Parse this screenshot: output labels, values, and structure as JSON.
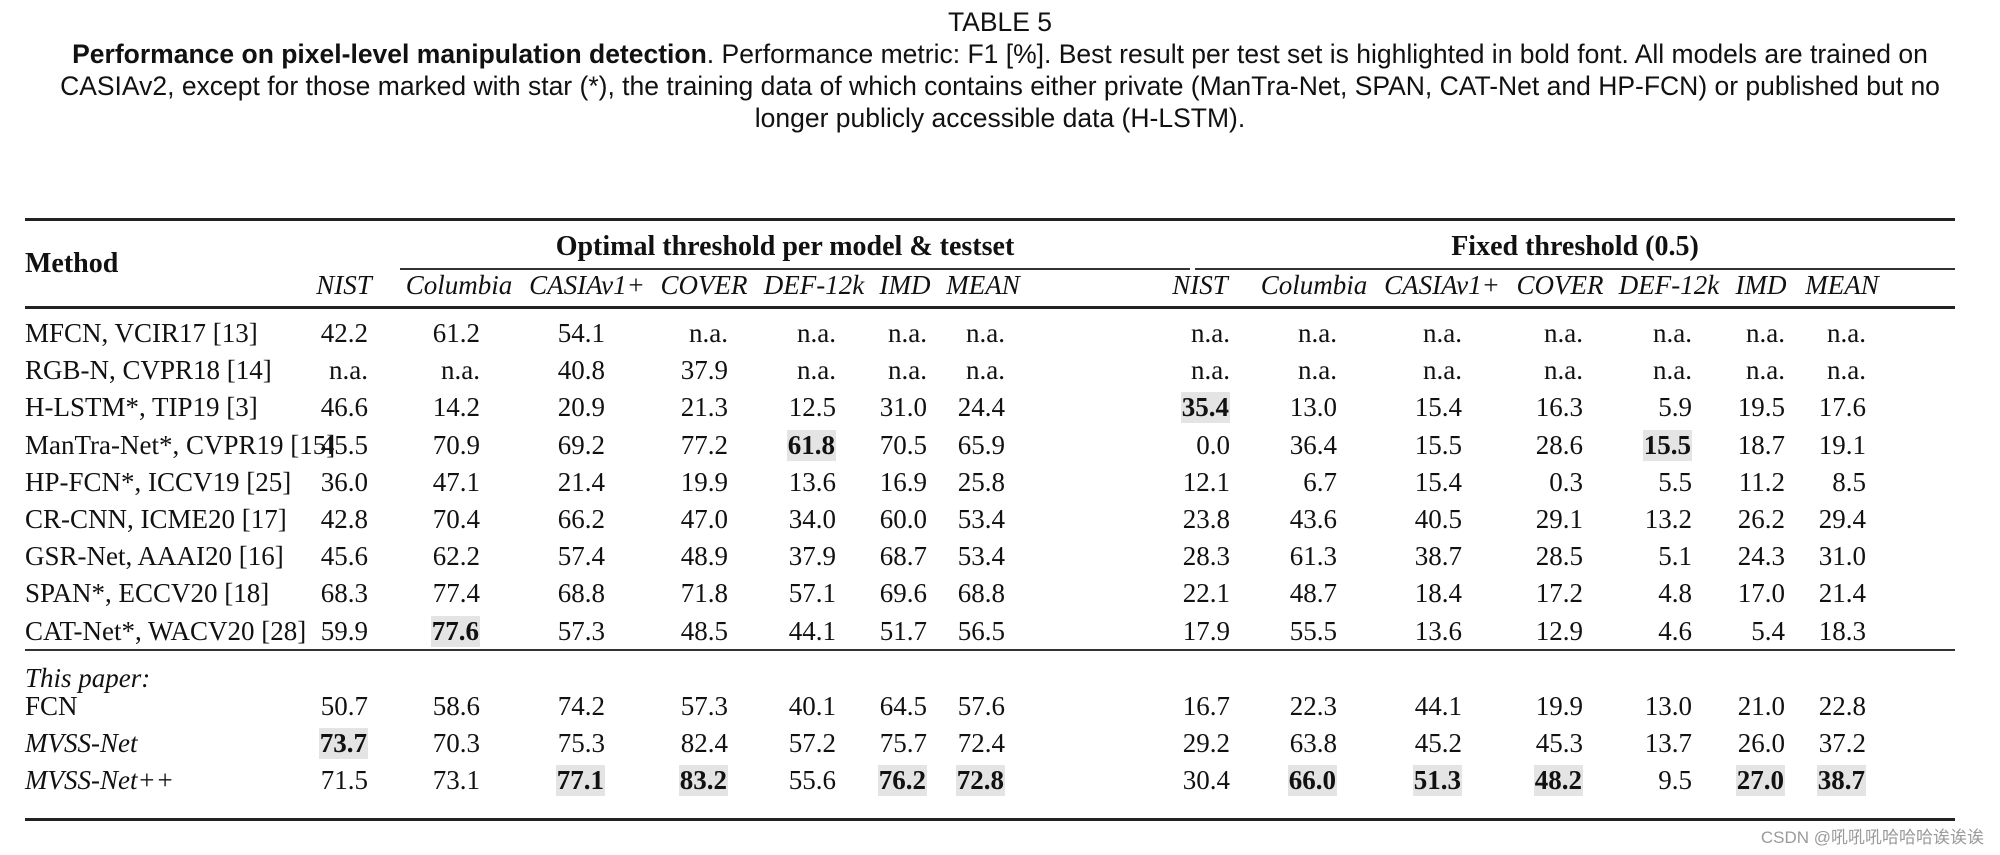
{
  "caption": {
    "label": "TABLE 5",
    "title_bold": "Performance on pixel-level manipulation detection",
    "text": ". Performance metric: F1 [%]. Best result per test set is highlighted in bold font. All models are trained on CASIAv2, except for those marked with star (*), the training data of which contains either private (ManTra-Net, SPAN, CAT-Net and HP-FCN) or published but no longer publicly accessible data (H-LSTM)."
  },
  "table": {
    "method_header": "Method",
    "groups": [
      {
        "label": "Optimal threshold per model & testset"
      },
      {
        "label": "Fixed threshold (0.5)"
      }
    ],
    "columns": [
      "NIST",
      "Columbia",
      "CASIAv1+",
      "COVER",
      "DEF-12k",
      "IMD",
      "MEAN"
    ],
    "section_label": "This paper:",
    "rows": [
      {
        "method": "MFCN, VCIR17 [13]",
        "italic": false,
        "optimal": [
          "42.2",
          "61.2",
          "54.1",
          "n.a.",
          "n.a.",
          "n.a.",
          "n.a."
        ],
        "fixed": [
          "n.a.",
          "n.a.",
          "n.a.",
          "n.a.",
          "n.a.",
          "n.a.",
          "n.a."
        ]
      },
      {
        "method": "RGB-N, CVPR18 [14]",
        "italic": false,
        "optimal": [
          "n.a.",
          "n.a.",
          "40.8",
          "37.9",
          "n.a.",
          "n.a.",
          "n.a."
        ],
        "fixed": [
          "n.a.",
          "n.a.",
          "n.a.",
          "n.a.",
          "n.a.",
          "n.a.",
          "n.a."
        ]
      },
      {
        "method": "H-LSTM*, TIP19 [3]",
        "italic": false,
        "optimal": [
          "46.6",
          "14.2",
          "20.9",
          "21.3",
          "12.5",
          "31.0",
          "24.4"
        ],
        "fixed": [
          "35.4",
          "13.0",
          "15.4",
          "16.3",
          "5.9",
          "19.5",
          "17.6"
        ]
      },
      {
        "method": "ManTra-Net*, CVPR19 [15]",
        "italic": false,
        "optimal": [
          "45.5",
          "70.9",
          "69.2",
          "77.2",
          "61.8",
          "70.5",
          "65.9"
        ],
        "fixed": [
          "0.0",
          "36.4",
          "15.5",
          "28.6",
          "15.5",
          "18.7",
          "19.1"
        ]
      },
      {
        "method": "HP-FCN*, ICCV19 [25]",
        "italic": false,
        "optimal": [
          "36.0",
          "47.1",
          "21.4",
          "19.9",
          "13.6",
          "16.9",
          "25.8"
        ],
        "fixed": [
          "12.1",
          "6.7",
          "15.4",
          "0.3",
          "5.5",
          "11.2",
          "8.5"
        ]
      },
      {
        "method": "CR-CNN, ICME20 [17]",
        "italic": false,
        "optimal": [
          "42.8",
          "70.4",
          "66.2",
          "47.0",
          "34.0",
          "60.0",
          "53.4"
        ],
        "fixed": [
          "23.8",
          "43.6",
          "40.5",
          "29.1",
          "13.2",
          "26.2",
          "29.4"
        ]
      },
      {
        "method": "GSR-Net, AAAI20 [16]",
        "italic": false,
        "optimal": [
          "45.6",
          "62.2",
          "57.4",
          "48.9",
          "37.9",
          "68.7",
          "53.4"
        ],
        "fixed": [
          "28.3",
          "61.3",
          "38.7",
          "28.5",
          "5.1",
          "24.3",
          "31.0"
        ]
      },
      {
        "method": "SPAN*, ECCV20 [18]",
        "italic": false,
        "optimal": [
          "68.3",
          "77.4",
          "68.8",
          "71.8",
          "57.1",
          "69.6",
          "68.8"
        ],
        "fixed": [
          "22.1",
          "48.7",
          "18.4",
          "17.2",
          "4.8",
          "17.0",
          "21.4"
        ]
      },
      {
        "method": "CAT-Net*, WACV20 [28]",
        "italic": false,
        "optimal": [
          "59.9",
          "77.6",
          "57.3",
          "48.5",
          "44.1",
          "51.7",
          "56.5"
        ],
        "fixed": [
          "17.9",
          "55.5",
          "13.6",
          "12.9",
          "4.6",
          "5.4",
          "18.3"
        ]
      },
      {
        "method": "FCN",
        "italic": false,
        "optimal": [
          "50.7",
          "58.6",
          "74.2",
          "57.3",
          "40.1",
          "64.5",
          "57.6"
        ],
        "fixed": [
          "16.7",
          "22.3",
          "44.1",
          "19.9",
          "13.0",
          "21.0",
          "22.8"
        ]
      },
      {
        "method": "MVSS-Net",
        "italic": true,
        "optimal": [
          "73.7",
          "70.3",
          "75.3",
          "82.4",
          "57.2",
          "75.7",
          "72.4"
        ],
        "fixed": [
          "29.2",
          "63.8",
          "45.2",
          "45.3",
          "13.7",
          "26.0",
          "37.2"
        ]
      },
      {
        "method": "MVSS-Net++",
        "italic": true,
        "optimal": [
          "71.5",
          "73.1",
          "77.1",
          "83.2",
          "55.6",
          "76.2",
          "72.8"
        ],
        "fixed": [
          "30.4",
          "66.0",
          "51.3",
          "48.2",
          "9.5",
          "27.0",
          "38.7"
        ]
      }
    ],
    "best": {
      "optimal": [
        [
          10,
          0
        ],
        [
          8,
          1
        ],
        [
          11,
          2
        ],
        [
          11,
          3
        ],
        [
          3,
          4
        ],
        [
          11,
          5
        ],
        [
          11,
          6
        ]
      ],
      "fixed": [
        [
          2,
          0
        ],
        [
          11,
          1
        ],
        [
          11,
          2
        ],
        [
          11,
          3
        ],
        [
          3,
          4
        ],
        [
          11,
          5
        ],
        [
          11,
          6
        ]
      ]
    },
    "highlight_color": "#e4e4e4"
  },
  "watermark": "CSDN @吼吼吼哈哈哈诶诶诶"
}
